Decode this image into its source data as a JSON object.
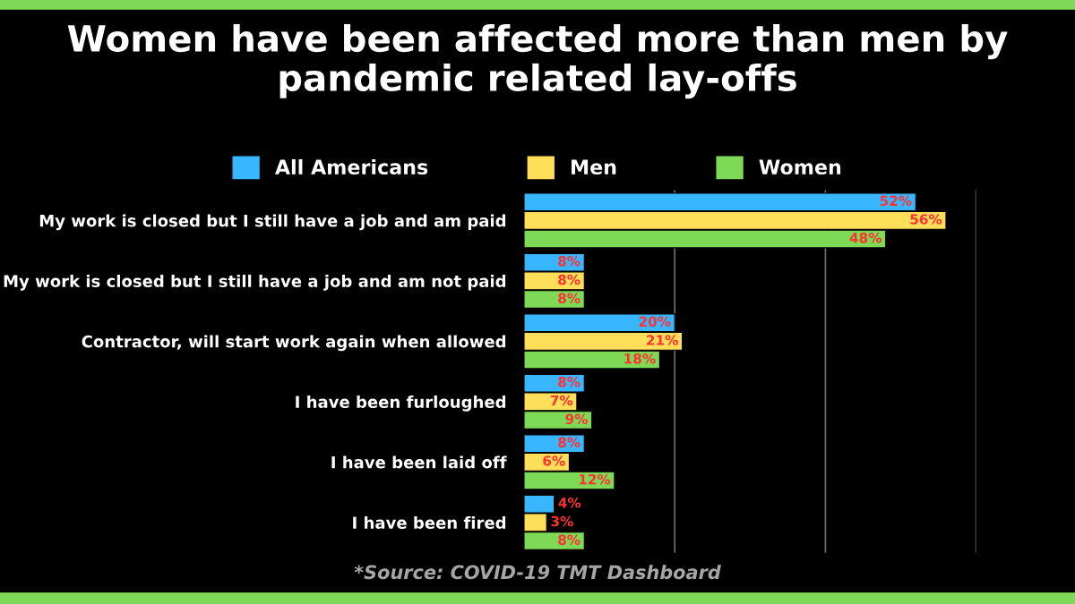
{
  "chart_data": {
    "type": "bar",
    "orientation": "horizontal",
    "title": "Women have been affected more than men by\npandemic related lay-offs",
    "categories": [
      "My work is closed but I still have a job and am paid",
      "My work is closed but I still have a job and am not paid",
      "Contractor, will start work again when allowed",
      "I have been furloughed",
      "I have been laid off",
      "I have been fired"
    ],
    "series": [
      {
        "name": "All Americans",
        "color": "#38b6ff",
        "values": [
          52,
          8,
          20,
          8,
          8,
          4
        ],
        "value_labels": [
          "52%",
          "8%",
          "20%",
          "8%",
          "8%",
          "4%"
        ]
      },
      {
        "name": "Men",
        "color": "#ffde59",
        "values": [
          56,
          8,
          21,
          7,
          6,
          3
        ],
        "value_labels": [
          "56%",
          "8%",
          "21%",
          "7%",
          "6%",
          "3%"
        ]
      },
      {
        "name": "Women",
        "color": "#7ed957",
        "values": [
          48,
          8,
          18,
          9,
          12,
          8
        ],
        "value_labels": [
          "48%",
          "8%",
          "18%",
          "9%",
          "12%",
          "8%"
        ]
      }
    ],
    "xlim": [
      0,
      60
    ],
    "ref_lines": [
      {
        "axis": "x",
        "value": 20,
        "color": "#6e6e6e"
      },
      {
        "axis": "x",
        "value": 40,
        "color": "#6e6e6e"
      },
      {
        "axis": "x",
        "value": 60,
        "color": "#6e6e6e"
      }
    ],
    "tick_labels": "y",
    "legend": "top",
    "annotations": [
      "*Source: COVID-19 TMT Dashboard"
    ]
  }
}
